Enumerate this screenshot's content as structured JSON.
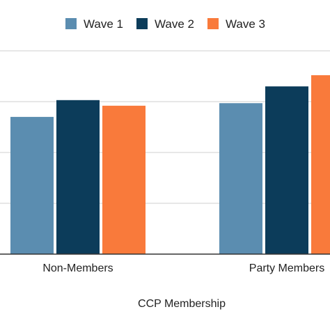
{
  "chart_data": {
    "type": "bar",
    "title": "",
    "xlabel": "CCP Membership",
    "ylabel": "",
    "categories": [
      "Non-Members",
      "Party Members"
    ],
    "series": [
      {
        "name": "Wave 1",
        "color": "#5b8db0",
        "values": [
          2.7,
          2.97
        ]
      },
      {
        "name": "Wave 2",
        "color": "#0c3c5a",
        "values": [
          3.03,
          3.3
        ]
      },
      {
        "name": "Wave 3",
        "color": "#f97a3b",
        "values": [
          2.92,
          3.52
        ]
      }
    ],
    "ylim": [
      0,
      4
    ],
    "grid": true,
    "legend_position": "top-center"
  }
}
